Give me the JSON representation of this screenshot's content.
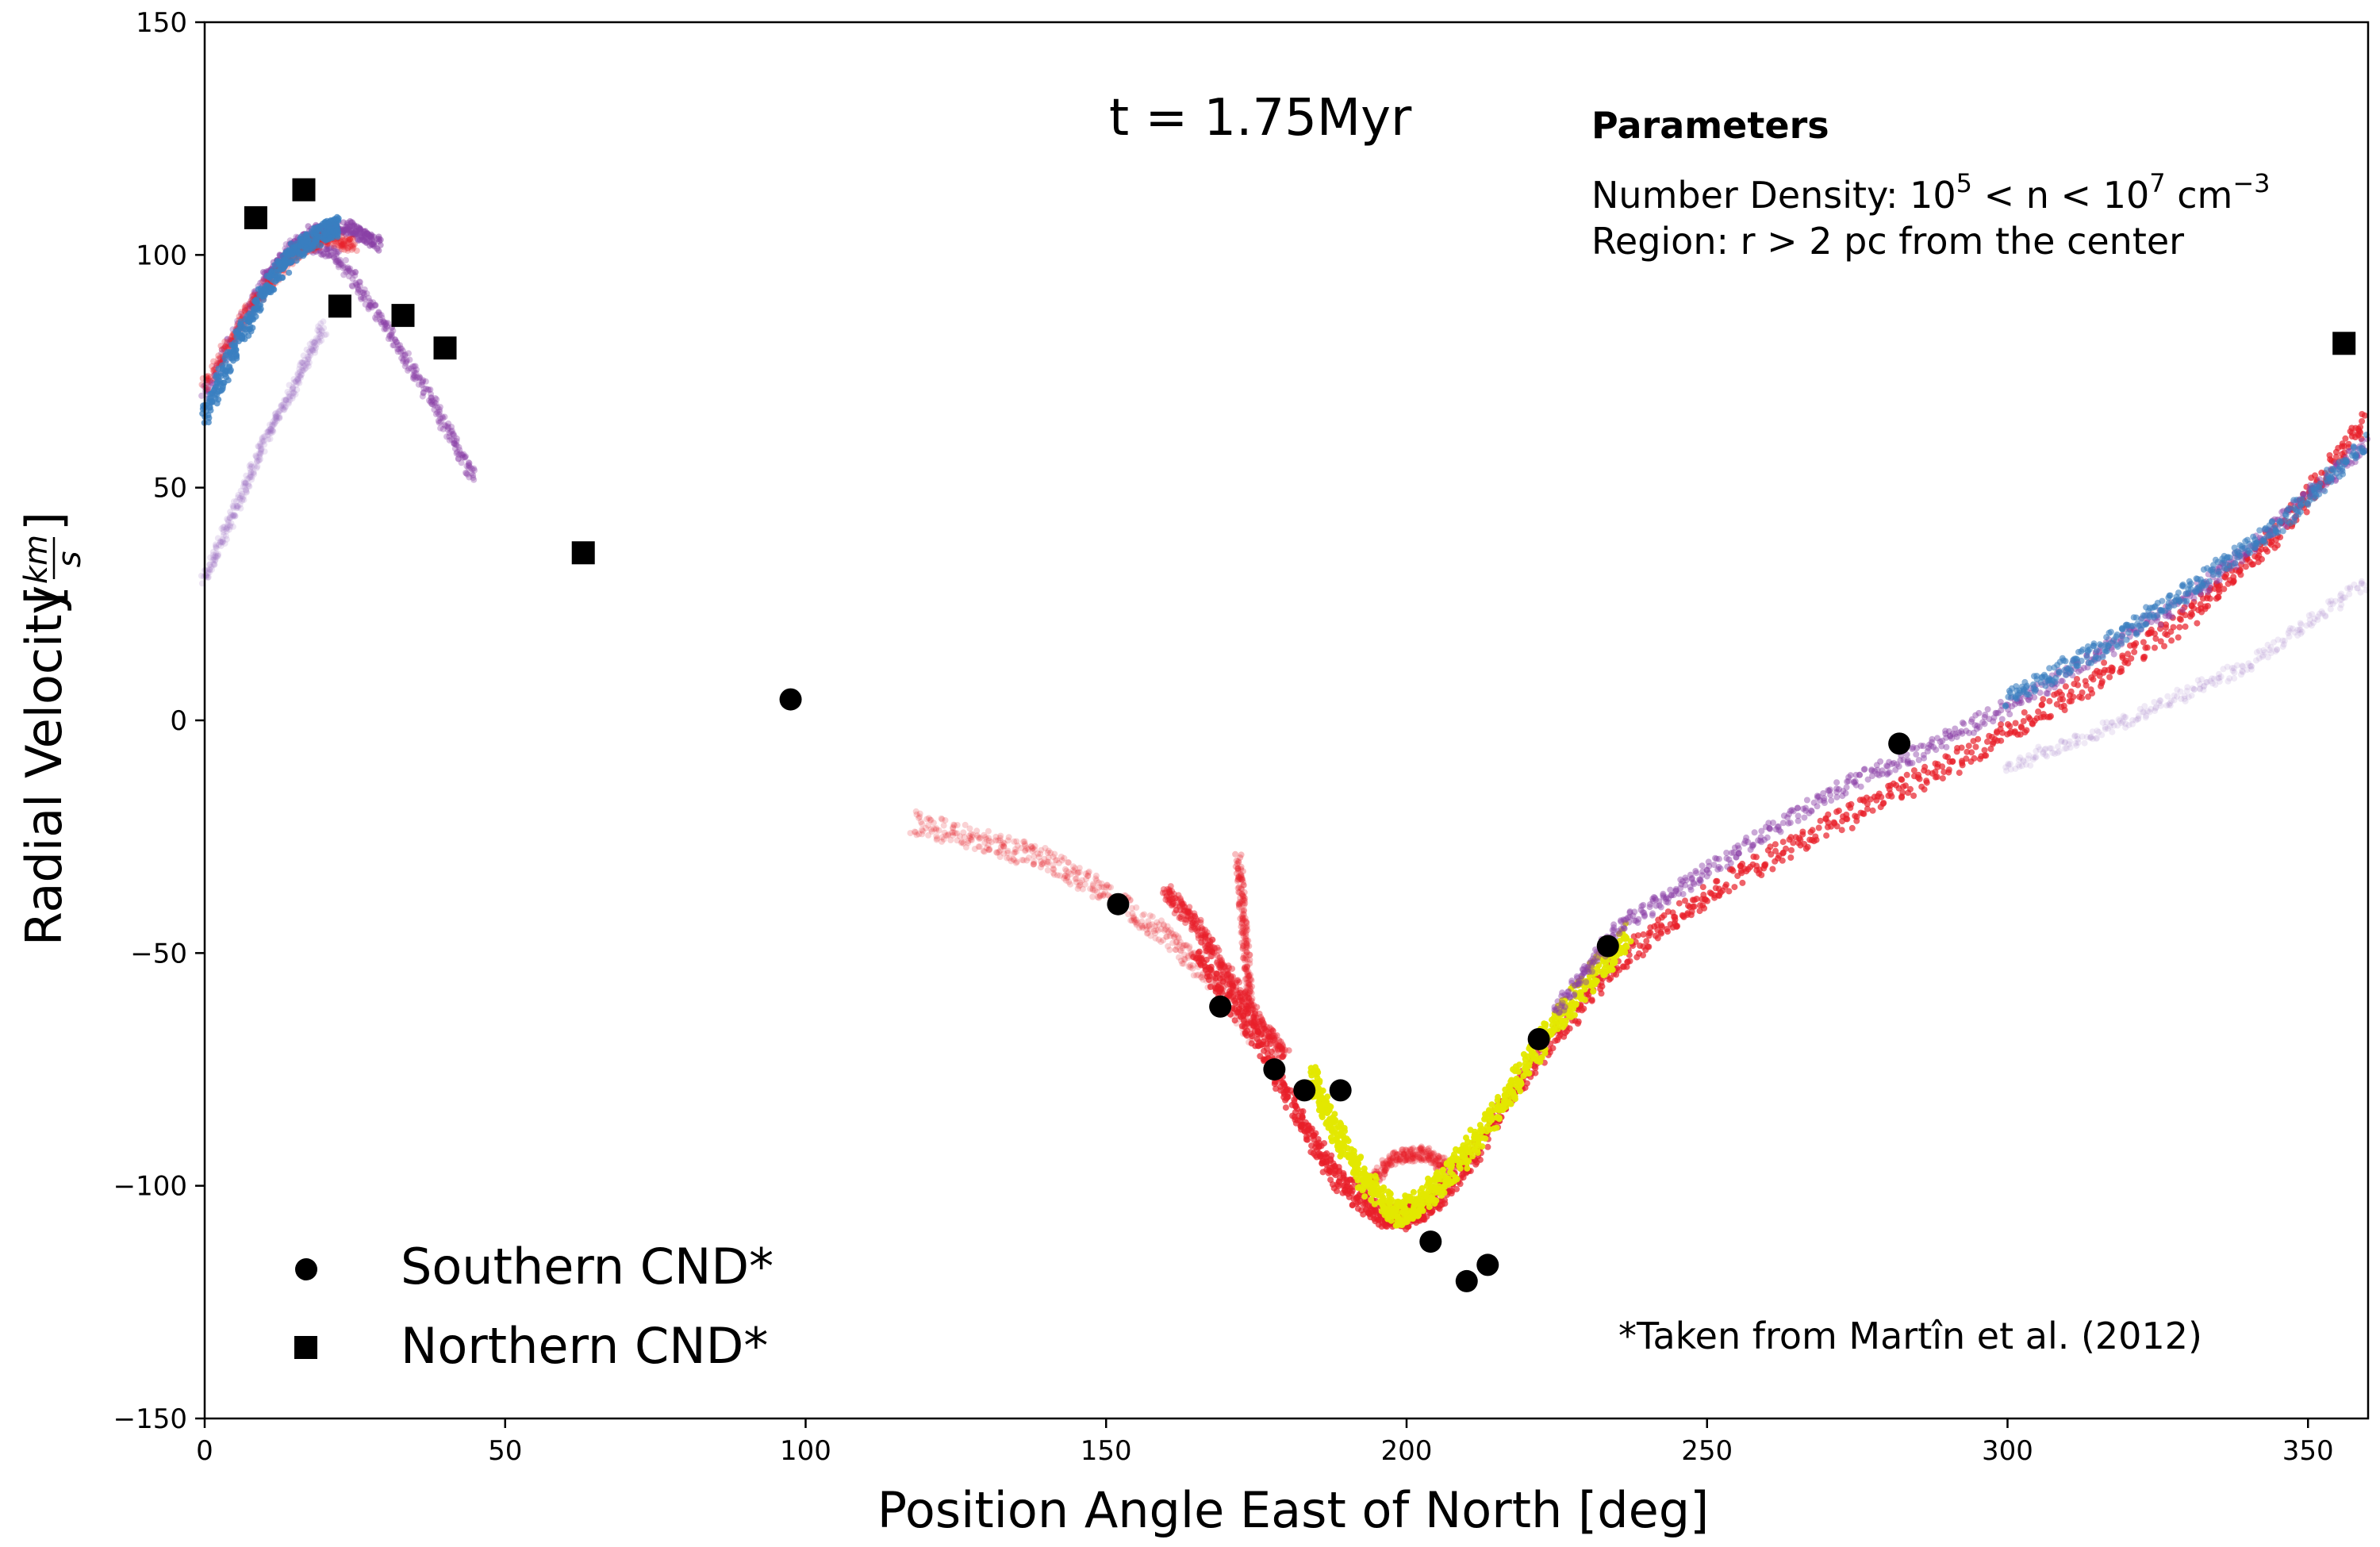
{
  "chart_data": {
    "type": "scatter",
    "xlabel": "Position Angle East of North [deg]",
    "ylabel_main": "Radial Velocity",
    "ylabel_unit_num": "km",
    "ylabel_unit_den": "s",
    "xlim": [
      0,
      360
    ],
    "ylim": [
      -150,
      150
    ],
    "xticks": [
      0,
      50,
      100,
      150,
      200,
      250,
      300,
      350
    ],
    "xtick_labels": [
      "0",
      "50",
      "100",
      "150",
      "200",
      "250",
      "300",
      "350"
    ],
    "yticks": [
      150,
      100,
      50,
      0,
      -50,
      -100,
      -150
    ],
    "ytick_labels": [
      "150",
      "100",
      "50",
      "0",
      "−50",
      "−100",
      "−150"
    ],
    "annotations": {
      "time": "t = 1.75Myr",
      "params_title": "Parameters",
      "density_prefix": "Number Density: 10",
      "density_exp1": "5",
      "density_mid": " < n < 10",
      "density_exp2": "7",
      "density_unit": " cm",
      "density_exp3": "−3",
      "region": "Region: r > 2 pc from the center",
      "source_note": "*Taken from Martîn et al. (2012)"
    },
    "series": [
      {
        "name": "Southern CND*",
        "marker": "circle",
        "color": "#000000",
        "x": [
          97.5,
          152,
          169,
          178,
          183,
          189,
          204,
          210,
          213.5,
          222,
          233.5,
          282
        ],
        "y": [
          4.5,
          -39.5,
          -61.5,
          -75,
          -79.5,
          -79.5,
          -112,
          -120.5,
          -117,
          -68.5,
          -48.5,
          -5
        ]
      },
      {
        "name": "Northern CND*",
        "marker": "square",
        "color": "#000000",
        "x": [
          8.5,
          16.5,
          22.5,
          33,
          40,
          63,
          356
        ],
        "y": [
          108,
          114,
          89,
          87,
          80,
          36,
          81
        ]
      }
    ],
    "simulation_bands": [
      {
        "name": "purple-particles",
        "color": "#8a3fa6",
        "opacity": 0.35,
        "width": 2.5,
        "x": [
          0,
          8,
          15,
          22,
          30,
          38,
          45
        ],
        "y": [
          70,
          90,
          103,
          100,
          85,
          68,
          52
        ]
      },
      {
        "name": "purple-particles-upper",
        "color": "#8a3fa6",
        "opacity": 0.5,
        "width": 3,
        "x": [
          10,
          18,
          24,
          29
        ],
        "y": [
          96,
          105,
          106,
          102
        ]
      },
      {
        "name": "purple-particles-faint",
        "color": "#9a6fc0",
        "opacity": 0.18,
        "width": 2.5,
        "x": [
          0,
          5,
          10,
          15,
          20
        ],
        "y": [
          30,
          45,
          60,
          72,
          85
        ]
      },
      {
        "name": "red-particles-north",
        "color": "#e8202a",
        "opacity": 0.3,
        "width": 3,
        "x": [
          0,
          8,
          15,
          20,
          25
        ],
        "y": [
          72,
          90,
          100,
          104,
          102
        ]
      },
      {
        "name": "blue-particles-north",
        "color": "#3a7fc0",
        "opacity": 0.75,
        "width": 4.5,
        "x": [
          0,
          5,
          10,
          15,
          20,
          22
        ],
        "y": [
          65,
          80,
          92,
          101,
          105,
          106
        ]
      },
      {
        "name": "red-particles-wing",
        "color": "#e8202a",
        "opacity": 0.2,
        "width": 5,
        "x": [
          118,
          130,
          140,
          150,
          160,
          168,
          175
        ],
        "y": [
          -22,
          -26,
          -30,
          -37,
          -46,
          -56,
          -68
        ]
      },
      {
        "name": "red-particles-fork",
        "color": "#e8202a",
        "opacity": 0.45,
        "width": 3.5,
        "x": [
          160,
          165,
          170,
          175,
          180
        ],
        "y": [
          -37,
          -44,
          -54,
          -64,
          -72
        ]
      },
      {
        "name": "red-particles-spike",
        "color": "#e8202a",
        "opacity": 0.3,
        "width": 3,
        "x": [
          172,
          173,
          174
        ],
        "y": [
          -30,
          -45,
          -60
        ]
      },
      {
        "name": "red-particles-main",
        "color": "#e8202a",
        "opacity": 0.7,
        "width": 5,
        "x": [
          165,
          175,
          182,
          188,
          195,
          200,
          205,
          212,
          222,
          235,
          250,
          270,
          290,
          310,
          330,
          345,
          360
        ],
        "y": [
          -50,
          -68,
          -85,
          -98,
          -106,
          -107,
          -103,
          -92,
          -72,
          -52,
          -37,
          -23,
          -10,
          5,
          22,
          40,
          65
        ]
      },
      {
        "name": "red-particles-bump",
        "color": "#e8202a",
        "opacity": 0.3,
        "width": 3,
        "x": [
          193,
          198,
          203,
          208
        ],
        "y": [
          -100,
          -94,
          -93,
          -97
        ]
      },
      {
        "name": "yellow-particles",
        "color": "#e3e800",
        "opacity": 0.95,
        "width": 6,
        "x": [
          184,
          188,
          193,
          198,
          202,
          208,
          215,
          222,
          230,
          237
        ],
        "y": [
          -76,
          -88,
          -99,
          -106,
          -104,
          -96,
          -84,
          -70,
          -56,
          -46
        ]
      },
      {
        "name": "purple-particles-south",
        "color": "#8a3fa6",
        "opacity": 0.45,
        "width": 3.5,
        "x": [
          225,
          235,
          250,
          270,
          290,
          310,
          330,
          345,
          360
        ],
        "y": [
          -62,
          -45,
          -32,
          -16,
          -4,
          10,
          26,
          42,
          60
        ]
      },
      {
        "name": "blue-particles-south",
        "color": "#3a7fc0",
        "opacity": 0.6,
        "width": 4,
        "x": [
          300,
          315,
          330,
          345,
          360
        ],
        "y": [
          5,
          15,
          28,
          42,
          60
        ]
      },
      {
        "name": "faint-tail-south",
        "color": "#9a6fc0",
        "opacity": 0.15,
        "width": 3,
        "x": [
          300,
          320,
          340,
          360
        ],
        "y": [
          -10,
          0,
          12,
          30
        ]
      }
    ],
    "legend_position": "lower-left",
    "grid": false
  }
}
